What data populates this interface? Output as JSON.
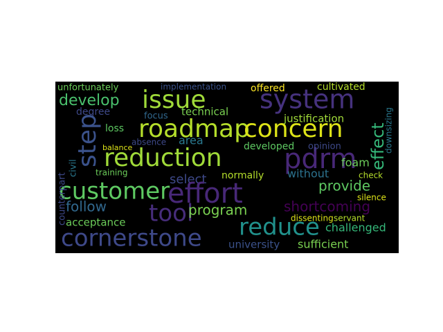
{
  "words": [
    "issue",
    "system",
    "develop",
    "unfortunately",
    "implementation",
    "offered",
    "cultivated",
    "roadmap",
    "concern",
    "technical",
    "justification",
    "degree",
    "focus",
    "loss",
    "step",
    "effect",
    "downsizing",
    "reduction",
    "pdrm",
    "area",
    "absence",
    "developed",
    "opinion",
    "foam",
    "select",
    "normally",
    "without",
    "training",
    "customer",
    "effort",
    "provide",
    "check",
    "silence",
    "follow",
    "tool",
    "program",
    "shortcoming",
    "acceptance",
    "dissenting",
    "servant",
    "reduce",
    "challenged",
    "cornerstone",
    "university",
    "sufficient",
    "counterpart",
    "civil",
    "balance"
  ]
}
